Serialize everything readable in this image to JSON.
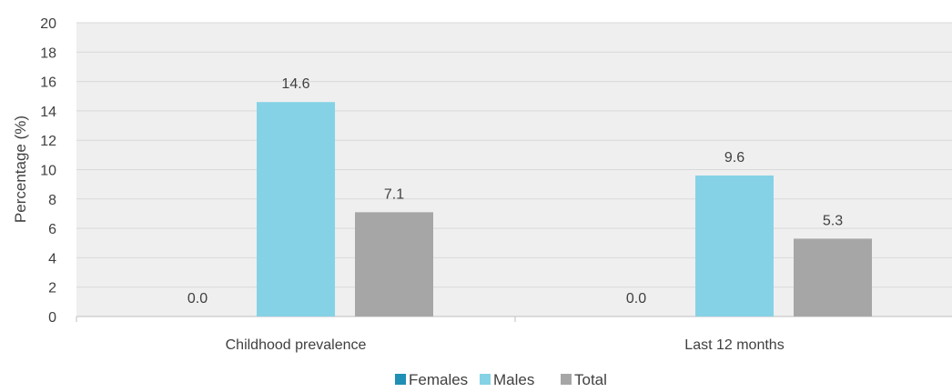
{
  "chart_data": {
    "type": "bar",
    "categories": [
      "Childhood prevalence",
      "Last 12 months"
    ],
    "series": [
      {
        "name": "Females",
        "values": [
          0.0,
          0.0
        ],
        "labels": [
          "0.0",
          "0.0"
        ],
        "color": "#1f8fb5"
      },
      {
        "name": "Males",
        "values": [
          14.6,
          9.6
        ],
        "labels": [
          "14.6",
          "9.6"
        ],
        "color": "#85d2e6"
      },
      {
        "name": "Total",
        "values": [
          7.1,
          5.3
        ],
        "labels": [
          "7.1",
          "5.3"
        ],
        "color": "#a6a6a6"
      }
    ],
    "ylabel": "Percentage (%)",
    "xlabel": "",
    "ylim": [
      0,
      20
    ],
    "yticks": [
      0,
      2,
      4,
      6,
      8,
      10,
      12,
      14,
      16,
      18,
      20
    ],
    "grid": true,
    "legend": "bottom",
    "plot_background": "#efefef"
  }
}
